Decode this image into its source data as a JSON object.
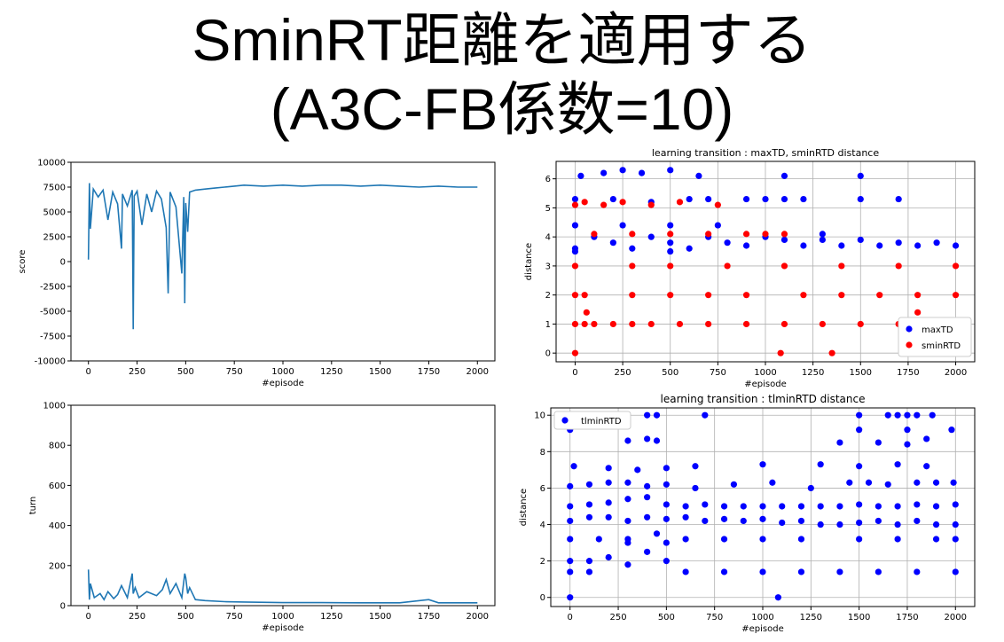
{
  "slide": {
    "title_line1": "SminRT距離を適用する",
    "title_line2": "(A3C-FB係数=10)"
  },
  "colors": {
    "line": "#1f77b4",
    "blue": "#0000ff",
    "red": "#ff0000"
  },
  "chart_data": [
    {
      "id": "score",
      "type": "line",
      "title": "",
      "xlabel": "#episode",
      "ylabel": "score",
      "xlim": [
        -90,
        2090
      ],
      "ylim": [
        -10000,
        10000
      ],
      "xticks": [
        0,
        250,
        500,
        750,
        1000,
        1250,
        1500,
        1750,
        2000
      ],
      "yticks": [
        -10000,
        -7500,
        -5000,
        -2500,
        0,
        2500,
        5000,
        7500,
        10000
      ],
      "grid": false,
      "series": [
        {
          "name": "",
          "color": "#1f77b4",
          "x": [
            0,
            5,
            10,
            25,
            50,
            75,
            100,
            125,
            150,
            170,
            175,
            200,
            225,
            230,
            235,
            250,
            275,
            300,
            325,
            350,
            375,
            400,
            410,
            420,
            450,
            480,
            490,
            495,
            500,
            510,
            520,
            550,
            600,
            650,
            700,
            750,
            800,
            900,
            1000,
            1100,
            1200,
            1300,
            1400,
            1500,
            1600,
            1700,
            1800,
            1900,
            2000
          ],
          "y": [
            200,
            7900,
            3300,
            7300,
            6500,
            7200,
            4200,
            7000,
            5800,
            1300,
            6800,
            5600,
            7200,
            -6800,
            6600,
            7100,
            3700,
            6800,
            5000,
            7100,
            6300,
            3400,
            -3200,
            7000,
            5500,
            -1200,
            6500,
            -4200,
            5900,
            3000,
            7000,
            7200,
            7300,
            7400,
            7500,
            7600,
            7700,
            7600,
            7700,
            7600,
            7700,
            7700,
            7600,
            7700,
            7600,
            7500,
            7600,
            7500,
            7500
          ]
        }
      ]
    },
    {
      "id": "turn",
      "type": "line",
      "title": "",
      "xlabel": "#episode",
      "ylabel": "turn",
      "xlim": [
        -90,
        2090
      ],
      "ylim": [
        0,
        1000
      ],
      "xticks": [
        0,
        250,
        500,
        750,
        1000,
        1250,
        1500,
        1750,
        2000
      ],
      "yticks": [
        0,
        200,
        400,
        600,
        800,
        1000
      ],
      "grid": false,
      "series": [
        {
          "name": "",
          "color": "#1f77b4",
          "x": [
            0,
            5,
            10,
            30,
            60,
            80,
            100,
            130,
            150,
            170,
            200,
            225,
            230,
            240,
            260,
            300,
            350,
            380,
            400,
            420,
            450,
            480,
            495,
            500,
            510,
            520,
            550,
            600,
            700,
            800,
            1000,
            1200,
            1400,
            1600,
            1750,
            1800,
            2000
          ],
          "y": [
            180,
            30,
            110,
            40,
            60,
            30,
            70,
            35,
            55,
            100,
            40,
            160,
            60,
            90,
            40,
            70,
            50,
            80,
            130,
            60,
            110,
            40,
            160,
            140,
            60,
            90,
            30,
            25,
            20,
            18,
            15,
            15,
            14,
            14,
            30,
            14,
            14
          ]
        }
      ]
    },
    {
      "id": "maxtd-smin",
      "type": "scatter",
      "title": "learning transition : maxTD, sminRTD distance",
      "xlabel": "#episode",
      "ylabel": "distance",
      "xlim": [
        -100,
        2100
      ],
      "ylim": [
        -0.3,
        6.6
      ],
      "xticks": [
        0,
        250,
        500,
        750,
        1000,
        1250,
        1500,
        1750,
        2000
      ],
      "yticks": [
        0,
        1,
        2,
        3,
        4,
        5,
        6
      ],
      "grid": true,
      "legend": "bottom-right",
      "series": [
        {
          "name": "maxTD",
          "color": "#0000ff",
          "x": [
            0,
            500,
            0,
            300,
            600,
            900,
            1200,
            1400,
            1600,
            1800,
            2000,
            200,
            500,
            800,
            1100,
            1300,
            1500,
            1700,
            1900,
            100,
            400,
            700,
            1000,
            1300,
            0,
            250,
            500,
            750,
            0,
            200,
            400,
            600,
            700,
            900,
            1000,
            1100,
            1200,
            1500,
            1700,
            30,
            150,
            250,
            350,
            500,
            650,
            1100,
            1500
          ],
          "y": [
            3.5,
            3.5,
            3.6,
            3.6,
            3.6,
            3.7,
            3.7,
            3.7,
            3.7,
            3.7,
            3.7,
            3.8,
            3.8,
            3.8,
            3.9,
            3.9,
            3.9,
            3.8,
            3.8,
            4.0,
            4.0,
            4.0,
            4.0,
            4.1,
            4.4,
            4.4,
            4.4,
            4.4,
            5.3,
            5.3,
            5.2,
            5.3,
            5.3,
            5.3,
            5.3,
            5.3,
            5.3,
            5.3,
            5.3,
            6.1,
            6.2,
            6.3,
            6.2,
            6.3,
            6.1,
            6.1,
            6.1
          ]
        }
      ],
      "series2": [
        {
          "name": "sminRTD",
          "color": "#ff0000",
          "x": [
            0,
            1080,
            1350,
            0,
            50,
            100,
            200,
            300,
            400,
            550,
            700,
            900,
            1100,
            1300,
            1500,
            1700,
            1900,
            2000,
            60,
            1800,
            0,
            50,
            300,
            500,
            700,
            900,
            1200,
            1400,
            1600,
            1800,
            2000,
            0,
            300,
            500,
            800,
            1100,
            1400,
            1700,
            2000,
            100,
            300,
            500,
            700,
            900,
            1000,
            1100,
            0,
            50,
            150,
            250,
            400,
            550,
            750
          ],
          "y": [
            0,
            0,
            0,
            1.0,
            1.0,
            1.0,
            1.0,
            1.0,
            1.0,
            1.0,
            1.0,
            1.0,
            1.0,
            1.0,
            1.0,
            1.0,
            1.0,
            1.0,
            1.4,
            1.4,
            2.0,
            2.0,
            2.0,
            2.0,
            2.0,
            2.0,
            2.0,
            2.0,
            2.0,
            2.0,
            2.0,
            3.0,
            3.0,
            3.0,
            3.0,
            3.0,
            3.0,
            3.0,
            3.0,
            4.1,
            4.1,
            4.1,
            4.1,
            4.1,
            4.1,
            4.1,
            5.1,
            5.2,
            5.1,
            5.2,
            5.1,
            5.2,
            5.1
          ]
        }
      ]
    },
    {
      "id": "tlmin",
      "type": "scatter",
      "title": "learning transition : tlminRTD distance",
      "xlabel": "#episode",
      "ylabel": "distance",
      "xlim": [
        -100,
        2100
      ],
      "ylim": [
        -0.5,
        10.4
      ],
      "xticks": [
        0,
        250,
        500,
        750,
        1000,
        1250,
        1500,
        1750,
        2000
      ],
      "yticks": [
        0,
        2,
        4,
        6,
        8,
        10
      ],
      "grid": true,
      "legend": "top-left",
      "series": [
        {
          "name": "tlminRTD",
          "color": "#0000ff",
          "x": [
            0,
            1080,
            0,
            100,
            300,
            500,
            600,
            800,
            1000,
            1200,
            1400,
            1600,
            1800,
            2000,
            0,
            100,
            200,
            300,
            400,
            500,
            0,
            150,
            300,
            450,
            600,
            800,
            1000,
            1200,
            1500,
            1700,
            1900,
            2000,
            0,
            100,
            200,
            300,
            400,
            500,
            600,
            700,
            800,
            900,
            1000,
            1100,
            1200,
            1300,
            1400,
            1500,
            1600,
            1700,
            1800,
            1900,
            2000,
            0,
            100,
            200,
            300,
            400,
            500,
            600,
            700,
            800,
            900,
            1000,
            1100,
            1200,
            1300,
            1400,
            1500,
            1600,
            1700,
            1800,
            1900,
            2000,
            0,
            100,
            200,
            300,
            400,
            500,
            650,
            850,
            1050,
            1250,
            1450,
            1550,
            1650,
            1800,
            1900,
            1990,
            20,
            200,
            350,
            500,
            650,
            1000,
            1300,
            1500,
            1700,
            1850,
            300,
            400,
            450,
            1400,
            1600,
            1750,
            1850,
            1980,
            1500,
            1750,
            400,
            450,
            700,
            1500,
            1650,
            1700,
            1750,
            1800,
            1880,
            0
          ],
          "y": [
            0,
            0,
            1.4,
            1.4,
            1.8,
            2.0,
            1.4,
            1.4,
            1.4,
            1.4,
            1.4,
            1.4,
            1.4,
            1.4,
            2.0,
            2.0,
            2.2,
            3.0,
            2.5,
            3.0,
            3.2,
            3.2,
            3.2,
            3.5,
            3.2,
            3.2,
            3.2,
            3.2,
            3.2,
            3.2,
            3.2,
            3.2,
            4.2,
            4.4,
            4.4,
            4.2,
            4.4,
            4.3,
            4.4,
            4.2,
            4.3,
            4.2,
            4.3,
            4.1,
            4.2,
            4.0,
            4.0,
            4.1,
            4.2,
            4.0,
            4.2,
            4.0,
            4.0,
            5.0,
            5.1,
            5.2,
            5.4,
            5.5,
            5.1,
            5.0,
            5.1,
            5.0,
            5.0,
            5.0,
            5.0,
            5.0,
            5.0,
            5.0,
            5.1,
            5.0,
            5.0,
            5.1,
            5.0,
            5.1,
            6.1,
            6.2,
            6.3,
            6.3,
            6.1,
            6.2,
            6.0,
            6.2,
            6.3,
            6.0,
            6.3,
            6.3,
            6.2,
            6.3,
            6.3,
            6.3,
            7.2,
            7.1,
            7.0,
            7.1,
            7.2,
            7.3,
            7.3,
            7.2,
            7.3,
            7.2,
            8.6,
            8.7,
            8.6,
            8.5,
            8.5,
            8.4,
            8.7,
            9.2,
            9.2,
            9.2,
            10.0,
            10.0,
            10.0,
            10.0,
            10.0,
            10.0,
            10.0,
            10.0,
            10.0,
            9.2
          ]
        }
      ]
    }
  ]
}
